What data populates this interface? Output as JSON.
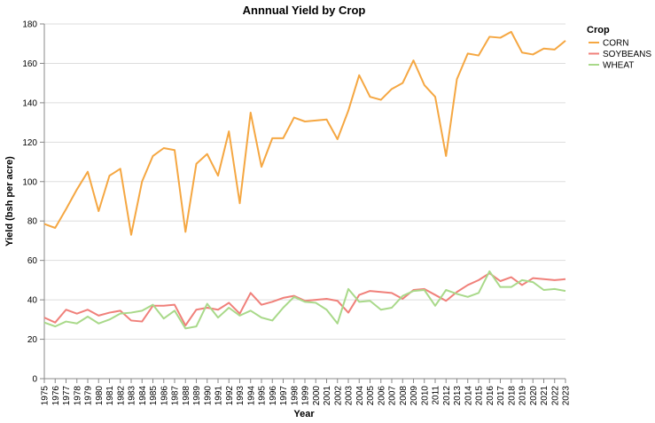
{
  "chart_data": {
    "type": "line",
    "title": "Annnual Yield by Crop",
    "xlabel": "Year",
    "ylabel": "Yield (bsh per acre)",
    "ylim": [
      0,
      180
    ],
    "yticks": [
      0,
      20,
      40,
      60,
      80,
      100,
      120,
      140,
      160,
      180
    ],
    "grid": true,
    "legend": {
      "title": "Crop",
      "placement": "top-right"
    },
    "x": [
      1975,
      1976,
      1977,
      1978,
      1979,
      1980,
      1981,
      1982,
      1983,
      1984,
      1985,
      1986,
      1987,
      1988,
      1989,
      1990,
      1991,
      1992,
      1993,
      1994,
      1995,
      1996,
      1997,
      1998,
      1999,
      2000,
      2001,
      2002,
      2003,
      2004,
      2005,
      2006,
      2007,
      2008,
      2009,
      2010,
      2011,
      2012,
      2013,
      2014,
      2015,
      2016,
      2017,
      2018,
      2019,
      2020,
      2021,
      2022,
      2023
    ],
    "series": [
      {
        "name": "CORN",
        "color": "#f5a742",
        "values": [
          78.5,
          76.5,
          86,
          96,
          105,
          85,
          103,
          106.5,
          73,
          100,
          113,
          117,
          116,
          74.5,
          109,
          114,
          103,
          125.5,
          89,
          135,
          107.5,
          122,
          122,
          132.5,
          130.5,
          131,
          131.5,
          121.5,
          136,
          154,
          143,
          141.5,
          147,
          150,
          161.5,
          149,
          143,
          113,
          152,
          165,
          164,
          173.5,
          173,
          176,
          165.5,
          164.5,
          167.5,
          167,
          171.5
        ]
      },
      {
        "name": "SOYBEANS",
        "color": "#f0807a",
        "values": [
          31,
          28.5,
          35,
          33,
          35,
          32,
          33.5,
          34.5,
          29.5,
          29,
          37,
          37,
          37.5,
          27,
          35,
          36,
          35,
          38.5,
          33,
          43.5,
          37.5,
          39,
          41,
          42,
          39.5,
          40,
          40.5,
          39.5,
          33.5,
          42.5,
          44.5,
          44,
          43.5,
          40.5,
          45,
          45.5,
          42.5,
          39.5,
          44,
          47.5,
          50,
          53.5,
          49.5,
          51.5,
          47.5,
          51,
          50.5,
          50,
          50.5
        ]
      },
      {
        "name": "WHEAT",
        "color": "#a9d98a",
        "values": [
          28.5,
          26.5,
          29,
          28,
          31.5,
          28,
          30,
          33,
          33.5,
          34.5,
          37.5,
          30.5,
          34.5,
          25.5,
          26.5,
          38,
          31,
          36,
          32,
          34.5,
          31,
          29.5,
          36,
          41.5,
          39,
          38.5,
          35,
          28,
          45.5,
          39,
          39.5,
          35,
          36,
          42,
          44.5,
          45,
          37,
          45,
          43,
          41.5,
          43.5,
          54.5,
          46.5,
          46.5,
          50,
          49,
          45,
          45.5,
          44.5
        ]
      }
    ]
  }
}
